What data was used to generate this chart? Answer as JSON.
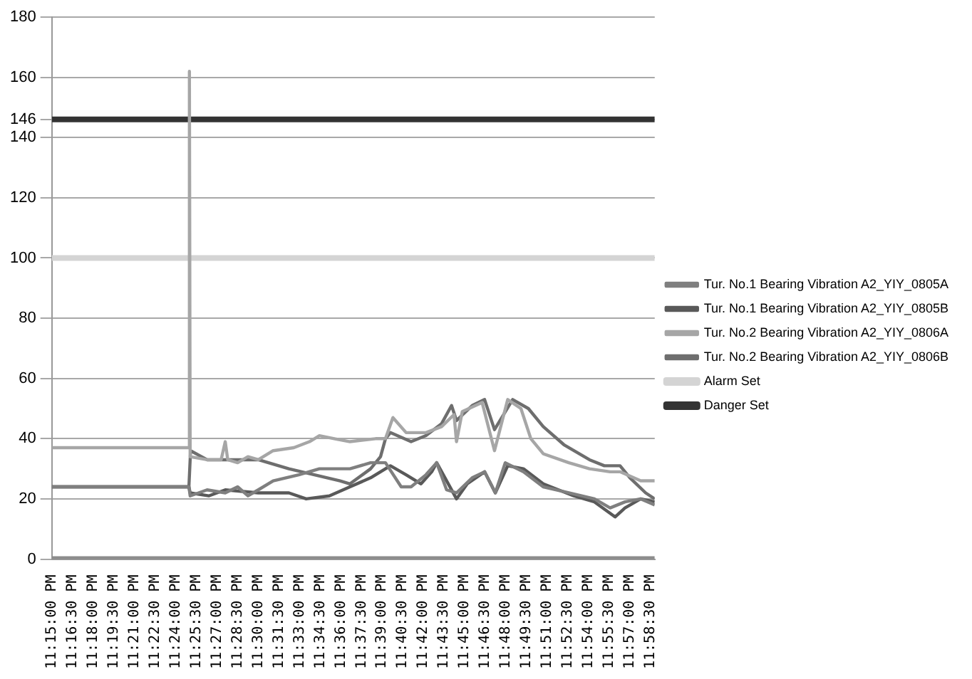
{
  "chart_data": {
    "type": "line",
    "grid": "y",
    "legend": "right",
    "marker": "none",
    "line_style": "solid",
    "xlim": [
      23.25,
      23.98
    ],
    "ylim": [
      0,
      180
    ],
    "yticks": [
      0,
      20,
      40,
      60,
      80,
      100,
      120,
      140,
      146,
      160,
      180
    ],
    "xticks": [
      {
        "value": 23.25,
        "label": "11:15:00 PM"
      },
      {
        "value": 23.275,
        "label": "11:16:30 PM"
      },
      {
        "value": 23.3,
        "label": "11:18:00 PM"
      },
      {
        "value": 23.325,
        "label": "11:19:30 PM"
      },
      {
        "value": 23.35,
        "label": "11:21:00 PM"
      },
      {
        "value": 23.375,
        "label": "11:22:30 PM"
      },
      {
        "value": 23.4,
        "label": "11:24:00 PM"
      },
      {
        "value": 23.425,
        "label": "11:25:30 PM"
      },
      {
        "value": 23.45,
        "label": "11:27:00 PM"
      },
      {
        "value": 23.475,
        "label": "11:28:30 PM"
      },
      {
        "value": 23.5,
        "label": "11:30:00 PM"
      },
      {
        "value": 23.525,
        "label": "11:31:30 PM"
      },
      {
        "value": 23.55,
        "label": "11:33:00 PM"
      },
      {
        "value": 23.575,
        "label": "11:34:30 PM"
      },
      {
        "value": 23.6,
        "label": "11:36:00 PM"
      },
      {
        "value": 23.625,
        "label": "11:37:30 PM"
      },
      {
        "value": 23.65,
        "label": "11:39:00 PM"
      },
      {
        "value": 23.675,
        "label": "11:40:30 PM"
      },
      {
        "value": 23.7,
        "label": "11:42:00 PM"
      },
      {
        "value": 23.725,
        "label": "11:43:30 PM"
      },
      {
        "value": 23.75,
        "label": "11:45:00 PM"
      },
      {
        "value": 23.775,
        "label": "11:46:30 PM"
      },
      {
        "value": 23.8,
        "label": "11:48:00 PM"
      },
      {
        "value": 23.825,
        "label": "11:49:30 PM"
      },
      {
        "value": 23.85,
        "label": "11:51:00 PM"
      },
      {
        "value": 23.875,
        "label": "11:52:30 PM"
      },
      {
        "value": 23.9,
        "label": "11:54:00 PM"
      },
      {
        "value": 23.925,
        "label": "11:55:30 PM"
      },
      {
        "value": 23.95,
        "label": "11:57:00 PM"
      },
      {
        "value": 23.975,
        "label": "11:58:30 PM"
      }
    ],
    "series": [
      {
        "color": "#8c8c8c",
        "x": [
          23.25,
          23.98
        ],
        "values": [
          0,
          0
        ]
      },
      {
        "name": "Tur. No.1 Bearing Vibration A2_YIY_0805A",
        "color": "#7f7f7f",
        "x": [
          23.25,
          23.416,
          23.4175,
          23.438,
          23.46,
          23.475,
          23.4875,
          23.5,
          23.518,
          23.549,
          23.574,
          23.611,
          23.636,
          23.654,
          23.673,
          23.685,
          23.703,
          23.716,
          23.728,
          23.74,
          23.759,
          23.774,
          23.787,
          23.799,
          23.821,
          23.845,
          23.876,
          23.907,
          23.926,
          23.944,
          23.963,
          23.98
        ],
        "values": [
          24,
          24,
          21,
          23,
          22,
          24,
          21,
          23,
          26,
          28,
          30,
          30,
          32,
          32,
          24,
          24,
          28,
          32,
          23,
          22,
          27,
          29,
          22,
          32,
          29,
          24,
          22,
          20,
          17,
          19,
          20,
          18
        ]
      },
      {
        "name": "Tur. No.1 Bearing Vibration A2_YIY_0805B",
        "color": "#595959",
        "x": [
          23.25,
          23.416,
          23.4175,
          23.44,
          23.46,
          23.5,
          23.537,
          23.558,
          23.586,
          23.611,
          23.636,
          23.648,
          23.66,
          23.679,
          23.697,
          23.71,
          23.716,
          23.74,
          23.753,
          23.774,
          23.787,
          23.802,
          23.821,
          23.845,
          23.882,
          23.907,
          23.932,
          23.944,
          23.963,
          23.98
        ],
        "values": [
          24,
          24,
          22,
          21,
          23,
          22,
          22,
          20,
          21,
          24,
          27,
          29,
          31,
          28,
          25,
          29,
          32,
          20,
          25,
          29,
          22,
          31,
          30,
          25,
          21,
          19,
          14,
          17,
          20,
          19
        ]
      },
      {
        "name": "Tur. No.2 Bearing Vibration A2_YIY_0806A",
        "color": "#a6a6a6",
        "x": [
          23.25,
          23.33,
          23.416,
          23.4166,
          23.4175,
          23.438,
          23.455,
          23.46,
          23.463,
          23.475,
          23.4875,
          23.5,
          23.518,
          23.543,
          23.562,
          23.574,
          23.592,
          23.611,
          23.642,
          23.654,
          23.663,
          23.679,
          23.703,
          23.722,
          23.737,
          23.74,
          23.747,
          23.771,
          23.786,
          23.802,
          23.818,
          23.83,
          23.845,
          23.876,
          23.901,
          23.926,
          23.938,
          23.963,
          23.98
        ],
        "values": [
          37,
          37,
          37,
          162,
          34,
          33,
          33,
          39,
          33,
          32,
          34,
          33,
          36,
          37,
          39,
          41,
          40,
          39,
          40,
          40,
          47,
          42,
          42,
          44,
          48,
          39,
          49,
          52,
          36,
          53,
          50,
          40,
          35,
          32,
          30,
          29,
          29,
          26,
          26
        ]
      },
      {
        "name": "Tur. No.2 Bearing Vibration A2_YIY_0806B",
        "color": "#6e6e6e",
        "x": [
          23.25,
          23.416,
          23.418,
          23.438,
          23.475,
          23.5,
          23.537,
          23.568,
          23.599,
          23.611,
          23.636,
          23.648,
          23.654,
          23.66,
          23.685,
          23.703,
          23.722,
          23.734,
          23.74,
          23.759,
          23.774,
          23.786,
          23.808,
          23.827,
          23.845,
          23.87,
          23.901,
          23.919,
          23.938,
          23.95,
          23.969,
          23.98
        ],
        "values": [
          24,
          24,
          36,
          33,
          33,
          33,
          30,
          28,
          26,
          25,
          30,
          34,
          40,
          42,
          39,
          41,
          45,
          51,
          46,
          51,
          53,
          43,
          53,
          50,
          44,
          38,
          33,
          31,
          31,
          27,
          22,
          20
        ]
      },
      {
        "name": "Alarm Set",
        "color": "#d4d4d4",
        "x": [
          23.25,
          23.98
        ],
        "values": [
          100,
          100
        ]
      },
      {
        "name": "Danger Set",
        "color": "#333333",
        "x": [
          23.25,
          23.98
        ],
        "values": [
          146,
          146
        ]
      }
    ]
  }
}
